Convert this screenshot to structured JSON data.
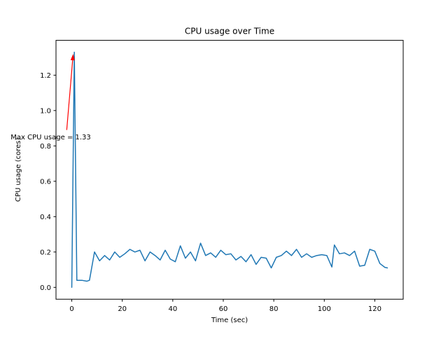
{
  "chart_data": {
    "type": "line",
    "title": "CPU usage over Time",
    "xlabel": "Time (sec)",
    "ylabel": "CPU usage (cores)",
    "x": [
      0,
      1,
      2,
      4,
      6,
      7,
      9,
      11,
      13,
      15,
      17,
      19,
      21,
      23,
      25,
      27,
      29,
      31,
      33,
      35,
      37,
      39,
      41,
      43,
      45,
      47,
      49,
      51,
      53,
      55,
      57,
      59,
      61,
      63,
      65,
      67,
      69,
      71,
      73,
      75,
      77,
      79,
      81,
      83,
      85,
      87,
      89,
      91,
      93,
      95,
      97,
      99,
      101,
      103,
      104,
      106,
      108,
      110,
      112,
      114,
      116,
      118,
      120,
      122,
      124,
      125
    ],
    "y": [
      0.0,
      1.33,
      0.04,
      0.04,
      0.035,
      0.04,
      0.2,
      0.15,
      0.18,
      0.155,
      0.2,
      0.17,
      0.19,
      0.215,
      0.2,
      0.21,
      0.15,
      0.2,
      0.18,
      0.155,
      0.21,
      0.16,
      0.145,
      0.235,
      0.165,
      0.2,
      0.15,
      0.25,
      0.18,
      0.195,
      0.17,
      0.21,
      0.185,
      0.19,
      0.155,
      0.175,
      0.145,
      0.185,
      0.13,
      0.17,
      0.165,
      0.11,
      0.17,
      0.18,
      0.205,
      0.18,
      0.215,
      0.17,
      0.19,
      0.17,
      0.18,
      0.185,
      0.18,
      0.115,
      0.24,
      0.19,
      0.195,
      0.18,
      0.205,
      0.12,
      0.125,
      0.215,
      0.205,
      0.135,
      0.113,
      0.11
    ],
    "max_value": 1.33,
    "xlim": [
      -6.25,
      131.25
    ],
    "ylim": [
      -0.067,
      1.397
    ],
    "xticks": [
      0,
      20,
      40,
      60,
      80,
      100,
      120
    ],
    "yticks": [
      0.0,
      0.2,
      0.4,
      0.6,
      0.8,
      1.0,
      1.2
    ],
    "grid": false,
    "legend": null,
    "line_color": "#1f77b4",
    "background_color": "#ffffff",
    "spine_color": "#000000",
    "annotation": {
      "text": "Max CPU usage = 1.33",
      "color": "#ff0000",
      "text_xy": [
        -24.2,
        0.85
      ],
      "arrow_from": [
        -2.0,
        0.89
      ],
      "arrow_to": [
        0.55,
        1.32
      ]
    }
  }
}
